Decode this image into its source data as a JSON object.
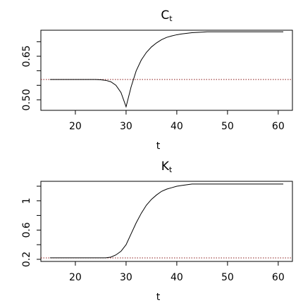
{
  "chart_data": [
    {
      "type": "line",
      "title": "C",
      "title_subscript": "t",
      "x_label": "t",
      "x": [
        15,
        16,
        17,
        18,
        19,
        20,
        21,
        22,
        23,
        24,
        25,
        26,
        27,
        28,
        29,
        30,
        31,
        32,
        33,
        34,
        35,
        36,
        37,
        38,
        39,
        40,
        41,
        42,
        43,
        44,
        45,
        46,
        47,
        48,
        49,
        50,
        51,
        52,
        53,
        54,
        55,
        56,
        57,
        58,
        59,
        60,
        61
      ],
      "series": [
        {
          "color": "#000000",
          "values": [
            0.57,
            0.57,
            0.57,
            0.57,
            0.57,
            0.57,
            0.57,
            0.57,
            0.57,
            0.57,
            0.569,
            0.567,
            0.562,
            0.55,
            0.525,
            0.476,
            0.545,
            0.6,
            0.637,
            0.663,
            0.682,
            0.696,
            0.707,
            0.715,
            0.72,
            0.724,
            0.727,
            0.729,
            0.731,
            0.732,
            0.733,
            0.734,
            0.734,
            0.734,
            0.734,
            0.734,
            0.734,
            0.734,
            0.734,
            0.734,
            0.734,
            0.734,
            0.734,
            0.734,
            0.734,
            0.734,
            0.734
          ]
        }
      ],
      "hline": 0.57,
      "hline_color": "#8b1a1a",
      "xlim": [
        13.2,
        62.8
      ],
      "xticks": [
        20,
        30,
        40,
        50,
        60
      ],
      "ylim": [
        0.4637,
        0.7396
      ],
      "yticks": [
        {
          "value": 0.5,
          "label": "0.50"
        },
        {
          "value": 0.65,
          "label": "0.65"
        }
      ],
      "minor_yticks": [
        0.55,
        0.6,
        0.7
      ]
    },
    {
      "type": "line",
      "title": "K",
      "title_subscript": "t",
      "x_label": "t",
      "x": [
        15,
        16,
        17,
        18,
        19,
        20,
        21,
        22,
        23,
        24,
        25,
        26,
        27,
        28,
        29,
        30,
        31,
        32,
        33,
        34,
        35,
        36,
        37,
        38,
        39,
        40,
        41,
        42,
        43,
        44,
        45,
        46,
        47,
        48,
        49,
        50,
        51,
        52,
        53,
        54,
        55,
        56,
        57,
        58,
        59,
        60,
        61
      ],
      "series": [
        {
          "color": "#000000",
          "values": [
            0.22,
            0.22,
            0.22,
            0.22,
            0.22,
            0.22,
            0.22,
            0.22,
            0.22,
            0.22,
            0.22,
            0.22,
            0.23,
            0.26,
            0.31,
            0.4,
            0.55,
            0.7,
            0.83,
            0.94,
            1.02,
            1.08,
            1.13,
            1.16,
            1.18,
            1.2,
            1.21,
            1.22,
            1.23,
            1.23,
            1.23,
            1.23,
            1.23,
            1.23,
            1.23,
            1.23,
            1.23,
            1.23,
            1.23,
            1.23,
            1.23,
            1.23,
            1.23,
            1.23,
            1.23,
            1.23,
            1.23
          ]
        }
      ],
      "hline": 0.219,
      "hline_color": "#8b1a1a",
      "xlim": [
        13.2,
        62.8
      ],
      "xticks": [
        20,
        30,
        40,
        50,
        60
      ],
      "ylim": [
        0.171,
        1.267
      ],
      "yticks": [
        0.2,
        0.6,
        1.0
      ],
      "minor_yticks": [
        0.4,
        0.8,
        1.2
      ]
    }
  ]
}
